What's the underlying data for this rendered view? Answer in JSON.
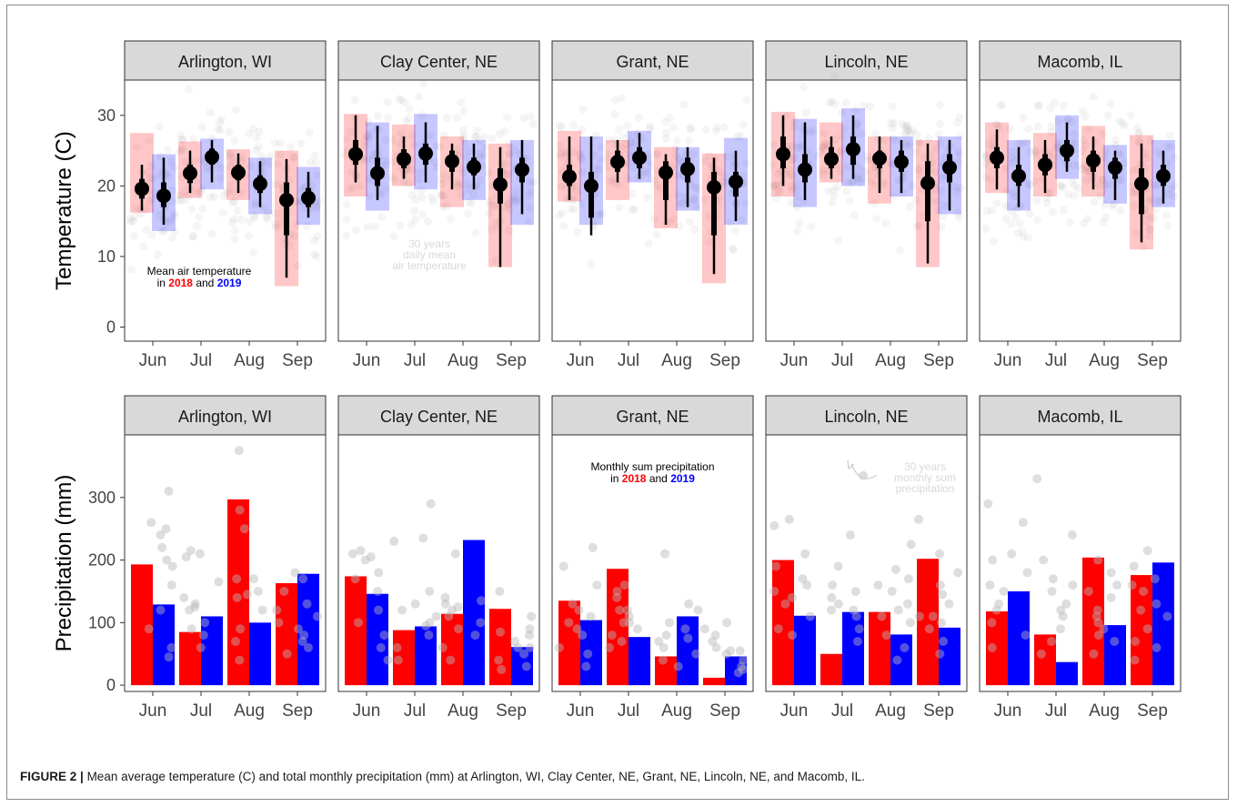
{
  "caption": {
    "label": "FIGURE 2 |",
    "text": "Mean average temperature (C) and total monthly precipitation (mm) at Arlington, WI, Clay Center, NE, Grant, NE, Lincoln, NE, and Macomb, IL."
  },
  "colors": {
    "y2018": "#ff0000",
    "y2019": "#0000ff",
    "strip": "#d9d9d9",
    "climatology": "#b5b5b5"
  },
  "chart_data": [
    {
      "type": "pointrange",
      "ylabel": "Temperature (C)",
      "ylim": [
        -2,
        35
      ],
      "yticks": [
        0,
        10,
        20,
        30
      ],
      "categories": [
        "Jun",
        "Jul",
        "Aug",
        "Sep"
      ],
      "grid": false,
      "annotation": {
        "panel": "Arlington, WI",
        "line1": "Mean air temperature",
        "in_word": "in",
        "year_a": "2018",
        "and_word": "and",
        "year_b": "2019"
      },
      "note": {
        "panel": "Clay Center, NE",
        "lines": [
          "30 years",
          "daily mean",
          "air temperature"
        ]
      },
      "panels": [
        {
          "name": "Arlington, WI",
          "y2018": [
            {
              "mean": 19.6,
              "q1": 18.2,
              "q3": 21.0,
              "lo": 16.5,
              "hi": 23.0,
              "min": 16.2,
              "max": 27.5
            },
            {
              "mean": 21.8,
              "q1": 20.4,
              "q3": 23.0,
              "lo": 19.0,
              "hi": 25.0,
              "min": 18.3,
              "max": 26.3
            },
            {
              "mean": 21.9,
              "q1": 20.8,
              "q3": 23.0,
              "lo": 19.0,
              "hi": 24.6,
              "min": 18.0,
              "max": 25.2
            },
            {
              "mean": 18.0,
              "q1": 13.0,
              "q3": 20.5,
              "lo": 7.0,
              "hi": 23.8,
              "min": 5.8,
              "max": 25.0
            }
          ],
          "y2019": [
            {
              "mean": 18.6,
              "q1": 17.0,
              "q3": 20.5,
              "lo": 14.5,
              "hi": 24.0,
              "min": 13.6,
              "max": 24.5
            },
            {
              "mean": 24.1,
              "q1": 23.0,
              "q3": 25.3,
              "lo": 20.5,
              "hi": 26.5,
              "min": 19.5,
              "max": 26.7
            },
            {
              "mean": 20.3,
              "q1": 19.0,
              "q3": 21.5,
              "lo": 17.0,
              "hi": 23.5,
              "min": 16.0,
              "max": 24.0
            },
            {
              "mean": 18.3,
              "q1": 17.0,
              "q3": 19.7,
              "lo": 15.5,
              "hi": 22.0,
              "min": 14.5,
              "max": 22.7
            }
          ]
        },
        {
          "name": "Clay Center, NE",
          "y2018": [
            {
              "mean": 24.5,
              "q1": 23.0,
              "q3": 26.5,
              "lo": 20.5,
              "hi": 30.0,
              "min": 18.5,
              "max": 30.2
            },
            {
              "mean": 23.8,
              "q1": 22.5,
              "q3": 25.2,
              "lo": 21.0,
              "hi": 27.0,
              "min": 20.0,
              "max": 28.7
            },
            {
              "mean": 23.5,
              "q1": 22.0,
              "q3": 25.0,
              "lo": 19.5,
              "hi": 26.0,
              "min": 17.0,
              "max": 27.0
            },
            {
              "mean": 20.2,
              "q1": 17.5,
              "q3": 22.5,
              "lo": 8.5,
              "hi": 25.5,
              "min": 8.5,
              "max": 26.0
            }
          ],
          "y2019": [
            {
              "mean": 21.8,
              "q1": 20.0,
              "q3": 24.0,
              "lo": 18.0,
              "hi": 28.5,
              "min": 16.5,
              "max": 29.0
            },
            {
              "mean": 24.6,
              "q1": 23.0,
              "q3": 26.0,
              "lo": 20.5,
              "hi": 29.0,
              "min": 19.5,
              "max": 30.2
            },
            {
              "mean": 22.7,
              "q1": 21.5,
              "q3": 24.0,
              "lo": 19.5,
              "hi": 26.0,
              "min": 18.0,
              "max": 26.5
            },
            {
              "mean": 22.3,
              "q1": 20.5,
              "q3": 24.0,
              "lo": 16.0,
              "hi": 26.5,
              "min": 14.5,
              "max": 26.5
            }
          ]
        },
        {
          "name": "Grant, NE",
          "y2018": [
            {
              "mean": 21.3,
              "q1": 20.0,
              "q3": 23.0,
              "lo": 18.0,
              "hi": 27.0,
              "min": 17.8,
              "max": 27.8
            },
            {
              "mean": 23.4,
              "q1": 22.0,
              "q3": 25.0,
              "lo": 20.5,
              "hi": 26.5,
              "min": 18.0,
              "max": 26.5
            },
            {
              "mean": 21.9,
              "q1": 18.0,
              "q3": 23.5,
              "lo": 14.5,
              "hi": 24.5,
              "min": 14.0,
              "max": 25.5
            },
            {
              "mean": 19.8,
              "q1": 13.0,
              "q3": 22.0,
              "lo": 7.5,
              "hi": 24.0,
              "min": 6.2,
              "max": 24.6
            }
          ],
          "y2019": [
            {
              "mean": 20.0,
              "q1": 15.5,
              "q3": 22.0,
              "lo": 13.0,
              "hi": 27.0,
              "min": 14.5,
              "max": 27.0
            },
            {
              "mean": 24.0,
              "q1": 22.5,
              "q3": 25.5,
              "lo": 21.0,
              "hi": 27.5,
              "min": 20.5,
              "max": 27.8
            },
            {
              "mean": 22.4,
              "q1": 20.5,
              "q3": 24.0,
              "lo": 17.0,
              "hi": 25.5,
              "min": 16.5,
              "max": 25.5
            },
            {
              "mean": 20.6,
              "q1": 18.5,
              "q3": 22.0,
              "lo": 15.0,
              "hi": 25.0,
              "min": 14.5,
              "max": 26.8
            }
          ]
        },
        {
          "name": "Lincoln, NE",
          "y2018": [
            {
              "mean": 24.5,
              "q1": 22.5,
              "q3": 27.0,
              "lo": 20.0,
              "hi": 30.0,
              "min": 18.5,
              "max": 30.5
            },
            {
              "mean": 23.8,
              "q1": 22.5,
              "q3": 25.5,
              "lo": 21.0,
              "hi": 27.0,
              "min": 20.5,
              "max": 29.0
            },
            {
              "mean": 23.9,
              "q1": 22.5,
              "q3": 25.0,
              "lo": 19.0,
              "hi": 27.0,
              "min": 17.5,
              "max": 27.0
            },
            {
              "mean": 20.4,
              "q1": 15.0,
              "q3": 23.5,
              "lo": 9.0,
              "hi": 26.0,
              "min": 8.5,
              "max": 26.5
            }
          ],
          "y2019": [
            {
              "mean": 22.3,
              "q1": 20.5,
              "q3": 24.5,
              "lo": 18.0,
              "hi": 29.0,
              "min": 17.0,
              "max": 29.5
            },
            {
              "mean": 25.2,
              "q1": 23.0,
              "q3": 27.0,
              "lo": 21.0,
              "hi": 30.0,
              "min": 20.0,
              "max": 31.0
            },
            {
              "mean": 23.4,
              "q1": 22.0,
              "q3": 25.0,
              "lo": 19.0,
              "hi": 26.5,
              "min": 18.5,
              "max": 27.0
            },
            {
              "mean": 22.6,
              "q1": 20.5,
              "q3": 24.5,
              "lo": 16.5,
              "hi": 26.5,
              "min": 16.0,
              "max": 27.0
            }
          ]
        },
        {
          "name": "Macomb, IL",
          "y2018": [
            {
              "mean": 24.0,
              "q1": 22.5,
              "q3": 25.5,
              "lo": 19.5,
              "hi": 28.0,
              "min": 19.0,
              "max": 29.0
            },
            {
              "mean": 23.0,
              "q1": 21.5,
              "q3": 24.5,
              "lo": 19.0,
              "hi": 26.5,
              "min": 18.5,
              "max": 27.5
            },
            {
              "mean": 23.6,
              "q1": 22.0,
              "q3": 25.0,
              "lo": 19.5,
              "hi": 27.0,
              "min": 18.5,
              "max": 28.5
            },
            {
              "mean": 20.3,
              "q1": 16.0,
              "q3": 22.5,
              "lo": 12.0,
              "hi": 26.0,
              "min": 11.0,
              "max": 27.2
            }
          ],
          "y2019": [
            {
              "mean": 21.4,
              "q1": 20.0,
              "q3": 23.0,
              "lo": 17.0,
              "hi": 25.5,
              "min": 16.5,
              "max": 26.5
            },
            {
              "mean": 25.0,
              "q1": 23.5,
              "q3": 26.5,
              "lo": 22.0,
              "hi": 29.0,
              "min": 21.0,
              "max": 30.0
            },
            {
              "mean": 22.6,
              "q1": 21.0,
              "q3": 24.0,
              "lo": 18.0,
              "hi": 25.0,
              "min": 17.5,
              "max": 25.8
            },
            {
              "mean": 21.4,
              "q1": 20.0,
              "q3": 23.0,
              "lo": 17.5,
              "hi": 25.0,
              "min": 17.0,
              "max": 26.5
            }
          ]
        }
      ]
    },
    {
      "type": "bar",
      "ylabel": "Precipitation (mm)",
      "ylim": [
        -10,
        400
      ],
      "yticks": [
        0,
        100,
        200,
        300
      ],
      "categories": [
        "Jun",
        "Jul",
        "Aug",
        "Sep"
      ],
      "grid": false,
      "annotation": {
        "panel": "Grant, NE",
        "line1": "Monthly sum precipitation",
        "in_word": "in",
        "year_a": "2018",
        "and_word": "and",
        "year_b": "2019"
      },
      "note": {
        "panel": "Lincoln, NE",
        "lines": [
          "30 years",
          "monthly sum",
          "precipitation"
        ]
      },
      "panels": [
        {
          "name": "Arlington, WI",
          "y2018": [
            193,
            85,
            297,
            163
          ],
          "y2019": [
            129,
            110,
            100,
            178
          ],
          "climatology": [
            [
              260,
              200,
              240,
              160,
              120,
              90,
              60,
              45,
              190,
              310,
              250,
              220
            ],
            [
              205,
              165,
              140,
              120,
              100,
              80,
              60,
              215,
              210,
              130,
              125,
              90
            ],
            [
              375,
              280,
              250,
              170,
              145,
              140,
              120,
              90,
              70,
              40,
              170,
              150
            ],
            [
              180,
              170,
              150,
              130,
              110,
              100,
              90,
              70,
              60,
              50,
              120,
              80
            ]
          ]
        },
        {
          "name": "Clay Center, NE",
          "y2018": [
            174,
            88,
            114,
            122
          ],
          "y2019": [
            146,
            94,
            232,
            61
          ],
          "climatology": [
            [
              215,
              205,
              210,
              170,
              150,
              120,
              100,
              80,
              60,
              40,
              200,
              180
            ],
            [
              235,
              290,
              230,
              150,
              130,
              110,
              100,
              80,
              60,
              40,
              120,
              95
            ],
            [
              140,
              130,
              125,
              110,
              100,
              90,
              80,
              60,
              40,
              210,
              135,
              120
            ],
            [
              150,
              110,
              90,
              80,
              70,
              60,
              50,
              40,
              30,
              25,
              85,
              60
            ]
          ]
        },
        {
          "name": "Grant, NE",
          "y2018": [
            135,
            186,
            46,
            12
          ],
          "y2019": [
            104,
            77,
            110,
            46
          ],
          "climatology": [
            [
              220,
              190,
              130,
              110,
              100,
              90,
              80,
              60,
              50,
              30,
              160,
              120
            ],
            [
              160,
              150,
              140,
              120,
              110,
              100,
              90,
              80,
              70,
              60,
              120,
              100
            ],
            [
              130,
              120,
              100,
              80,
              70,
              60,
              50,
              40,
              30,
              210,
              90,
              75
            ],
            [
              100,
              90,
              80,
              60,
              55,
              50,
              40,
              30,
              25,
              20,
              70,
              55
            ]
          ]
        },
        {
          "name": "Lincoln, NE",
          "y2018": [
            200,
            50,
            117,
            202
          ],
          "y2019": [
            111,
            117,
            81,
            92
          ],
          "climatology": [
            [
              265,
              255,
              210,
              190,
              160,
              150,
              130,
              110,
              90,
              80,
              170,
              140
            ],
            [
              335,
              240,
              190,
              160,
              140,
              130,
              120,
              110,
              90,
              70,
              150,
              120
            ],
            [
              225,
              185,
              170,
              150,
              120,
              110,
              100,
              80,
              60,
              40,
              160,
              130
            ],
            [
              265,
              210,
              180,
              160,
              130,
              110,
              100,
              90,
              70,
              50,
              145,
              110
            ]
          ]
        },
        {
          "name": "Macomb, IL",
          "y2018": [
            118,
            81,
            204,
            176
          ],
          "y2019": [
            150,
            37,
            96,
            196
          ],
          "climatology": [
            [
              260,
              290,
              200,
              180,
              160,
              130,
              120,
              100,
              80,
              60,
              210,
              150
            ],
            [
              330,
              240,
              200,
              170,
              150,
              130,
              110,
              90,
              70,
              50,
              160,
              120
            ],
            [
              200,
              180,
              160,
              140,
              120,
              100,
              90,
              80,
              70,
              50,
              150,
              110
            ],
            [
              215,
              190,
              170,
              150,
              130,
              110,
              90,
              70,
              60,
              40,
              160,
              120
            ]
          ]
        }
      ]
    }
  ]
}
